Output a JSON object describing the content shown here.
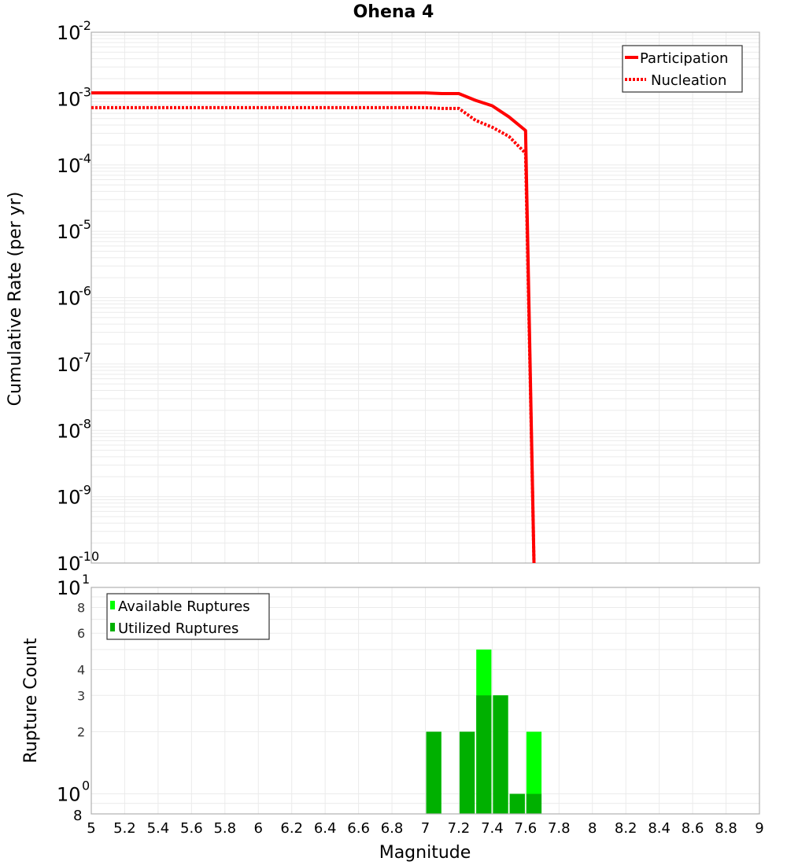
{
  "title": "Ohena 4",
  "colors": {
    "participation": "#ff0000",
    "nucleation": "#ff0000",
    "available": "#00ff00",
    "utilized": "#00b000",
    "grid": "#ebebeb",
    "frame": "#b0b0b0"
  },
  "top_chart": {
    "ylabel": "Cumulative Rate (per yr)",
    "legend": [
      {
        "label": "Participation",
        "style": "solid"
      },
      {
        "label": "Nucleation",
        "style": "dotted"
      }
    ]
  },
  "bottom_chart": {
    "ylabel": "Rupture Count",
    "xlabel": "Magnitude",
    "legend": [
      {
        "label": "Available Ruptures"
      },
      {
        "label": "Utilized Ruptures"
      }
    ]
  },
  "chart_data": [
    {
      "type": "line",
      "title": "Ohena 4",
      "xlabel": "",
      "ylabel": "Cumulative Rate (per yr)",
      "yscale": "log",
      "xlim": [
        5,
        9
      ],
      "ylim": [
        1e-10,
        0.01
      ],
      "yticks": [
        "10^-2",
        "10^-3",
        "10^-4",
        "10^-5",
        "10^-6",
        "10^-7",
        "10^-8",
        "10^-9",
        "10^-10"
      ],
      "grid": true,
      "legend_position": "upper right",
      "series": [
        {
          "name": "Participation",
          "style": "solid",
          "x": [
            5.0,
            5.5,
            6.0,
            6.5,
            7.0,
            7.1,
            7.2,
            7.3,
            7.4,
            7.5,
            7.6,
            7.65
          ],
          "y": [
            0.00122,
            0.00122,
            0.00122,
            0.00122,
            0.00122,
            0.00119,
            0.00119,
            0.00094,
            0.00078,
            0.00053,
            0.00033,
            1e-10
          ]
        },
        {
          "name": "Nucleation",
          "style": "dotted",
          "x": [
            5.0,
            5.5,
            6.0,
            6.5,
            7.0,
            7.1,
            7.2,
            7.3,
            7.4,
            7.5,
            7.6,
            7.65
          ],
          "y": [
            0.00073,
            0.00073,
            0.00073,
            0.00073,
            0.00073,
            0.00071,
            0.00071,
            0.00047,
            0.00037,
            0.00027,
            0.00015,
            1e-10
          ]
        }
      ]
    },
    {
      "type": "bar",
      "title": "",
      "xlabel": "Magnitude",
      "ylabel": "Rupture Count",
      "yscale": "log",
      "xlim": [
        5,
        9
      ],
      "ylim": [
        0.8,
        10
      ],
      "xticks": [
        "5",
        "5.2",
        "5.4",
        "5.6",
        "5.8",
        "6",
        "6.2",
        "6.4",
        "6.6",
        "6.8",
        "7",
        "7.2",
        "7.4",
        "7.6",
        "7.8",
        "8",
        "8.2",
        "8.4",
        "8.6",
        "8.8",
        "9"
      ],
      "yticks": [
        "8",
        "10^0",
        "2",
        "3",
        "4",
        "6",
        "8",
        "10^1"
      ],
      "grid": true,
      "legend_position": "upper left",
      "categories": [
        7.05,
        7.25,
        7.35,
        7.45,
        7.55,
        7.65
      ],
      "series": [
        {
          "name": "Available Ruptures",
          "values": [
            2,
            2,
            5,
            3,
            1,
            2
          ]
        },
        {
          "name": "Utilized Ruptures",
          "values": [
            2,
            2,
            3,
            3,
            1,
            1
          ]
        }
      ]
    }
  ]
}
